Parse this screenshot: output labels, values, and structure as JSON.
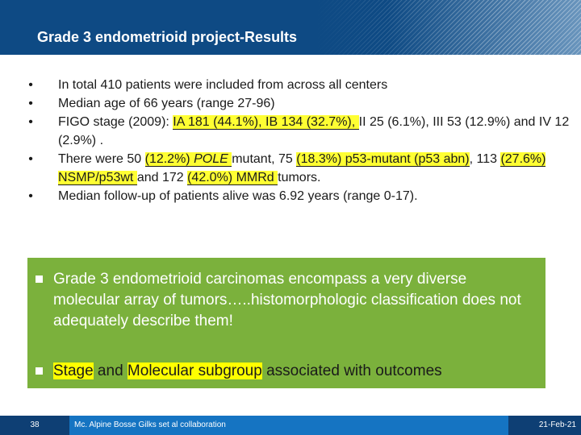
{
  "header": {
    "title": "Grade 3 endometrioid project-Results"
  },
  "bullets": {
    "b1": "In total 410 patients were included from across all centers",
    "b2": "Median age of 66 years (range 27-96)",
    "b3": {
      "prefix": "FIGO stage (2009): ",
      "ia": "IA 181 (44.1%), IB 134 (32.7%), ",
      "rest": "II 25 (6.1%), III 53 (12.9%) and IV 12 (2.9%) ."
    },
    "b4": {
      "p1": "There were 50 ",
      "pole_pct": "(12.2%) ",
      "pole": "POLE ",
      "p2": "mutant, 75 ",
      "p53": "(18.3%) p53-mutant (p53 abn)",
      "p3": ", 113 ",
      "nsmp": "(27.6%) NSMP/p53wt ",
      "p4": "and 172 ",
      "mmrd": "(42.0%) MMRd ",
      "p5": "tumors."
    },
    "b5": "Median follow-up of patients alive was 6.92 years (range 0-17)."
  },
  "box": {
    "item1": "Grade 3 endometrioid carcinomas encompass a very diverse molecular array of tumors…..histomorphologic classification does not adequately describe them!",
    "item2": {
      "stage": "Stage",
      "and": " and ",
      "molecular": "Molecular subgroup",
      "rest": " associated with outcomes"
    }
  },
  "footer": {
    "page": "38",
    "text": "Mc. Alpine Bosse Gilks set al collaboration",
    "date": "21-Feb-21"
  }
}
